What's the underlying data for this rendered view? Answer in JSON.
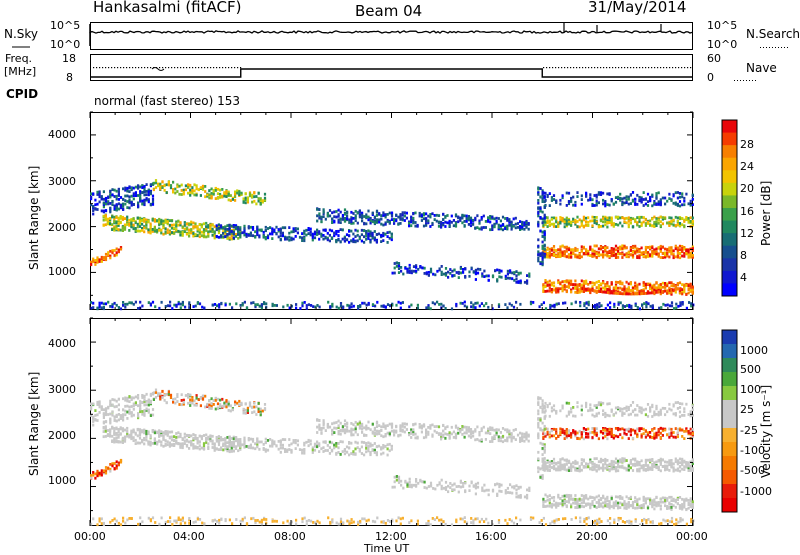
{
  "header": {
    "station": "Hankasalmi (fitACF)",
    "beam": "Beam 04",
    "date": "31/May/2014"
  },
  "top_panels": {
    "nsky_label": "N.Sky",
    "nsky_ticks": [
      "10^5",
      "10^0"
    ],
    "nsearch_label": "N.Search",
    "nsearch_ticks": [
      "10^5",
      "10^0"
    ],
    "freq_label": "Freq.",
    "freq_unit": "[MHz]",
    "freq_ticks": [
      "18",
      "8"
    ],
    "nave_label": "Nave",
    "nave_ticks": [
      "60",
      "0"
    ],
    "cpid_label": "CPID",
    "cpid_text": "normal (fast stereo) 153"
  },
  "chart_data": [
    {
      "type": "heatmap",
      "name": "power",
      "ylabel": "Slant Range [km]",
      "xlabel": "",
      "x_ticks": [
        "00:00",
        "04:00",
        "08:00",
        "12:00",
        "16:00",
        "20:00",
        "00:00"
      ],
      "y_ticks": [
        "4000",
        "3000",
        "2000",
        "1000"
      ],
      "xlim_hours": [
        0,
        24
      ],
      "ylim": [
        180,
        4500
      ],
      "colorbar_label": "Power [dB]",
      "colorbar_ticks": [
        "28",
        "24",
        "20",
        "16",
        "12",
        "8",
        "4"
      ],
      "colorbar_colors": [
        "#e8060a",
        "#f53c00",
        "#f77f00",
        "#faa500",
        "#f2c400",
        "#c8d30c",
        "#7ab829",
        "#3aa04a",
        "#20885f",
        "#176d74",
        "#164f8e",
        "#1a34a8",
        "#1018d0",
        "#0000ff"
      ]
    },
    {
      "type": "heatmap",
      "name": "velocity",
      "ylabel": "Slant Range [km]",
      "xlabel": "Time UT",
      "x_ticks": [
        "00:00",
        "04:00",
        "08:00",
        "12:00",
        "16:00",
        "20:00",
        "00:00"
      ],
      "y_ticks": [
        "4000",
        "3000",
        "2000",
        "1000"
      ],
      "xlim_hours": [
        0,
        24
      ],
      "ylim": [
        180,
        4500
      ],
      "colorbar_label": "Velocity [m s⁻¹]",
      "colorbar_ticks": [
        "1000",
        "500",
        "100",
        "25",
        "-25",
        "-100",
        "-500",
        "-1000"
      ],
      "colorbar_colors": [
        "#1a3cb0",
        "#2468b0",
        "#2f8a5a",
        "#4aa83a",
        "#88c940",
        "#c8c8c8",
        "#c8c8c8",
        "#f7b030",
        "#f79a10",
        "#f57a00",
        "#f55a00",
        "#e81c0a",
        "#e80000"
      ]
    }
  ]
}
